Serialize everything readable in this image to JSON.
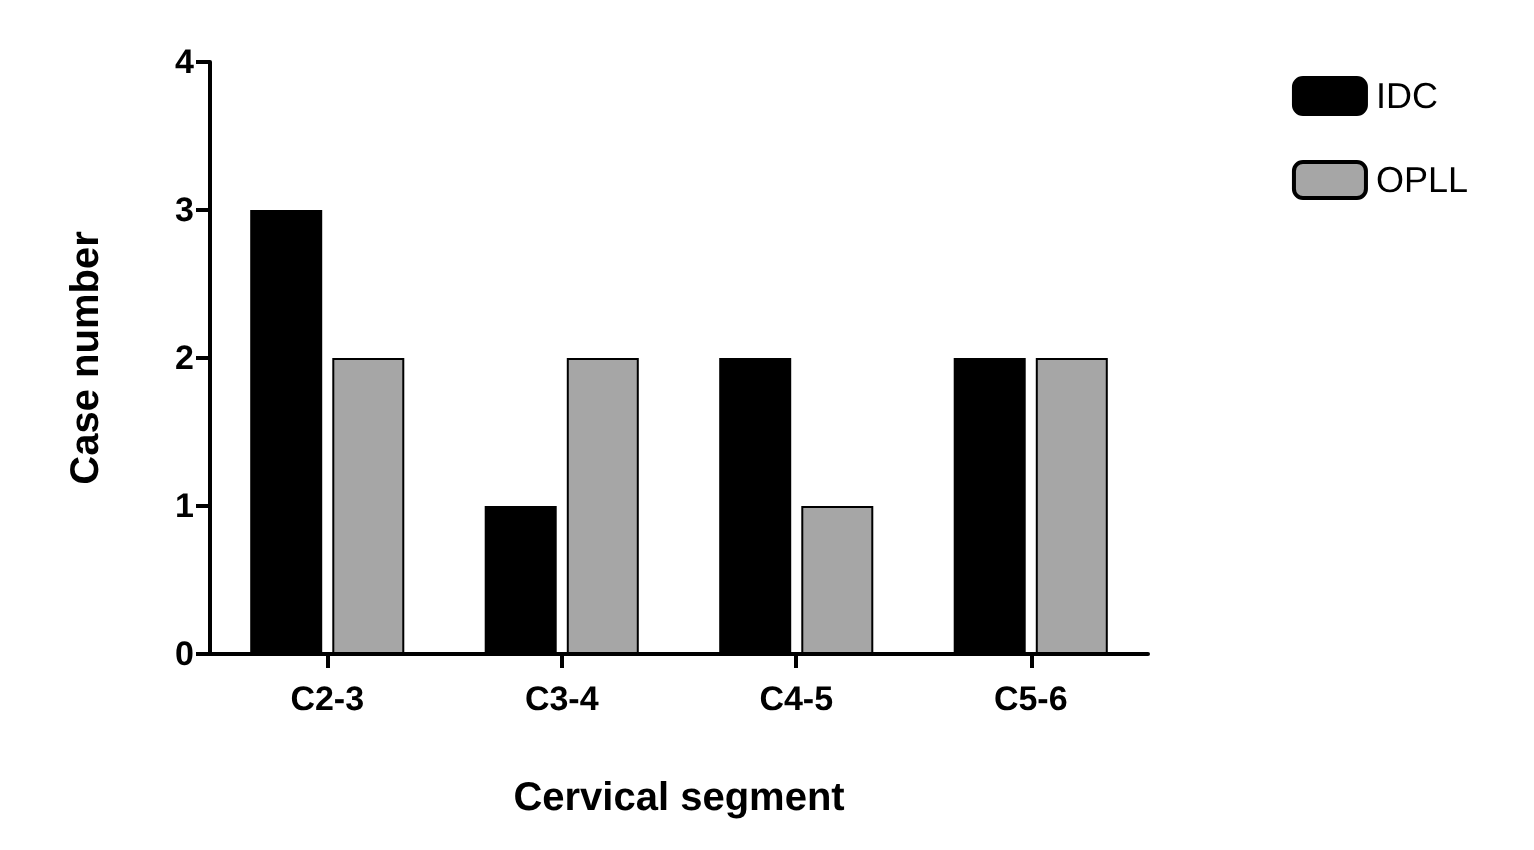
{
  "chart_data": {
    "type": "bar",
    "xlabel": "Cervical segment",
    "ylabel": "Case number",
    "categories": [
      "C2-3",
      "C3-4",
      "C4-5",
      "C5-6"
    ],
    "series": [
      {
        "name": "IDC",
        "color": "#000000",
        "values": [
          3,
          1,
          2,
          2
        ]
      },
      {
        "name": "OPLL",
        "color": "#a6a6a6",
        "values": [
          2,
          2,
          1,
          2
        ]
      }
    ],
    "ylim": [
      0,
      4
    ],
    "yticks": [
      0,
      1,
      2,
      3,
      4
    ],
    "grid": false,
    "legend": "top right"
  }
}
